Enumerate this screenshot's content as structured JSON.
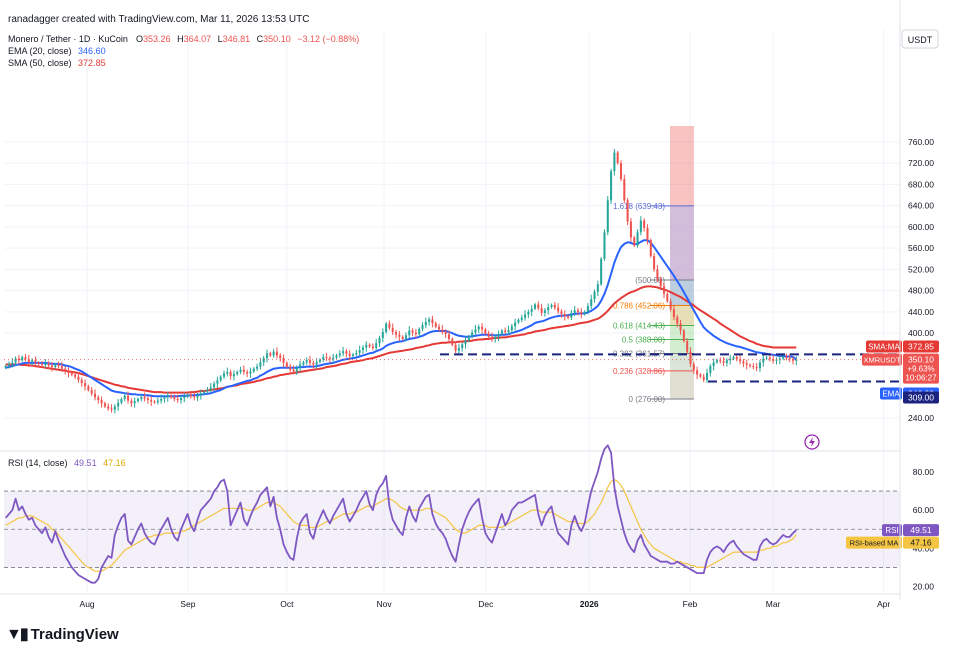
{
  "header": {
    "credit": "ranadagger created with TradingView.com, Mar 11, 2026 13:53 UTC",
    "symbol": "Monero / Tether · 1D · KuCoin",
    "ohlc": {
      "o_label": "O",
      "o": "353.26",
      "h_label": "H",
      "h": "364.07",
      "l_label": "L",
      "l": "346.81",
      "c_label": "C",
      "c": "350.10",
      "change": "−3.12 (−0.88%)"
    },
    "ema_legend": {
      "label": "EMA (20, close)",
      "value": "346.60"
    },
    "sma_legend": {
      "label": "SMA (50, close)",
      "value": "372.85"
    },
    "rsi_legend": {
      "label": "RSI (14, close)",
      "value": "49.51",
      "ma_value": "47.16"
    }
  },
  "axis": {
    "currency": "USDT",
    "price_ticks": [
      "760.00",
      "720.00",
      "680.00",
      "640.00",
      "600.00",
      "560.00",
      "520.00",
      "480.00",
      "440.00",
      "400.00",
      "240.00"
    ],
    "rsi_ticks": [
      "80.00",
      "60.00",
      "40.00",
      "20.00"
    ],
    "months": [
      "Aug",
      "Sep",
      "Oct",
      "Nov",
      "Dec",
      "2026",
      "Feb",
      "Mar",
      "Apr"
    ]
  },
  "tags": {
    "sma": {
      "label": "SMA:MA",
      "value": "372.85"
    },
    "level_360": "360.00",
    "symbol": {
      "label": "XMRUSDT",
      "value": "350.10",
      "change": "+9.63%",
      "countdown": "10:06:27"
    },
    "ema": {
      "label": "EMA",
      "value": "346.60"
    },
    "level_309": "309.00",
    "rsi": {
      "label": "RSI",
      "value": "49.51"
    },
    "rsi_ma": {
      "label": "RSI-based MA",
      "value": "47.16"
    }
  },
  "fib_labels": [
    "1.618 (639.43)",
    "(500.00)",
    "0.786 (452.06)",
    "0.618 (414.43)",
    "0.5 (388.00)",
    "0.382 (361.57)",
    "0.236 (328.86)",
    "0 (276.00)"
  ],
  "logo": "TradingView",
  "colors": {
    "up": "#26a69a",
    "down": "#ef5350",
    "ema": "#2962ff",
    "sma": "#e53935",
    "rsi": "#7e57c2",
    "rsi_ma": "#f5c542",
    "fib_green": "#4caf50",
    "fib_red": "#ef5350",
    "fib_blue": "#5b6bd6",
    "level": "#1a237e"
  },
  "chart_data": {
    "type": "candlestick",
    "title": "Monero / Tether · 1D · KuCoin",
    "price_range": [
      210,
      790
    ],
    "rsi_range": [
      15,
      96
    ],
    "closes": [
      338,
      341,
      345,
      352,
      349,
      355,
      351,
      346,
      349,
      344,
      342,
      340,
      343,
      339,
      336,
      341,
      338,
      333,
      329,
      325,
      322,
      318,
      312,
      306,
      300,
      293,
      286,
      279,
      274,
      268,
      262,
      258,
      256,
      262,
      269,
      276,
      282,
      273,
      268,
      272,
      276,
      280,
      277,
      274,
      271,
      270,
      273,
      276,
      279,
      282,
      279,
      276,
      274,
      278,
      281,
      284,
      281,
      279,
      283,
      287,
      290,
      293,
      298,
      305,
      311,
      318,
      324,
      327,
      319,
      323,
      327,
      331,
      327,
      324,
      328,
      333,
      337,
      345,
      353,
      362,
      358,
      365,
      358,
      353,
      344,
      337,
      331,
      328,
      335,
      341,
      345,
      349,
      344,
      341,
      346,
      350,
      355,
      353,
      351,
      354,
      358,
      362,
      366,
      361,
      357,
      360,
      363,
      368,
      373,
      378,
      375,
      372,
      381,
      391,
      402,
      418,
      410,
      402,
      397,
      393,
      389,
      396,
      405,
      401,
      398,
      408,
      415,
      421,
      426,
      419,
      412,
      407,
      403,
      398,
      389,
      378,
      367,
      372,
      379,
      386,
      394,
      401,
      407,
      412,
      407,
      399,
      393,
      389,
      393,
      398,
      405,
      402,
      406,
      413,
      420,
      425,
      429,
      435,
      440,
      446,
      454,
      447,
      438,
      443,
      449,
      453,
      448,
      441,
      436,
      432,
      429,
      438,
      443,
      440,
      436,
      440,
      451,
      464,
      478,
      492,
      540,
      590,
      650,
      705,
      740,
      720,
      690,
      650,
      610,
      580,
      565,
      590,
      612,
      598,
      575,
      545,
      520,
      502,
      488,
      474,
      460,
      445,
      430,
      418,
      405,
      385,
      365,
      342,
      330,
      322,
      318,
      312,
      325,
      338,
      345,
      349,
      347,
      344,
      349,
      352,
      355,
      351,
      347,
      343,
      340,
      338,
      336,
      334,
      345,
      352,
      354,
      351,
      348,
      350,
      352,
      356,
      353,
      351,
      348,
      350
    ],
    "ema20": [
      335,
      336,
      338,
      340,
      341,
      343,
      344,
      344,
      344,
      344,
      344,
      344,
      344,
      343,
      342,
      342,
      342,
      341,
      339,
      338,
      336,
      333,
      331,
      328,
      324,
      320,
      316,
      312,
      308,
      304,
      300,
      296,
      292,
      290,
      289,
      288,
      287,
      286,
      285,
      285,
      284,
      284,
      283,
      283,
      282,
      281,
      281,
      281,
      281,
      281,
      281,
      281,
      281,
      282,
      282,
      282,
      283,
      283,
      284,
      284,
      285,
      286,
      287,
      289,
      291,
      293,
      296,
      299,
      300,
      302,
      304,
      306,
      308,
      310,
      311,
      314,
      316,
      320,
      323,
      327,
      330,
      333,
      334,
      335,
      335,
      335,
      335,
      335,
      335,
      336,
      336,
      337,
      337,
      337,
      338,
      339,
      341,
      342,
      343,
      344,
      346,
      348,
      350,
      351,
      352,
      353,
      354,
      356,
      358,
      360,
      362,
      363,
      366,
      368,
      371,
      376,
      379,
      381,
      383,
      384,
      385,
      387,
      389,
      390,
      391,
      393,
      395,
      398,
      401,
      403,
      404,
      404,
      404,
      404,
      402,
      400,
      397,
      395,
      394,
      393,
      393,
      394,
      395,
      396,
      397,
      397,
      397,
      396,
      396,
      396,
      397,
      397,
      398,
      400,
      402,
      404,
      406,
      409,
      412,
      415,
      419,
      421,
      422,
      424,
      427,
      429,
      431,
      432,
      433,
      433,
      434,
      435,
      436,
      437,
      437,
      437,
      439,
      442,
      446,
      451,
      461,
      474,
      491,
      512,
      533,
      549,
      562,
      568,
      571,
      570,
      567,
      568,
      572,
      575,
      575,
      570,
      562,
      553,
      544,
      535,
      526,
      517,
      508,
      498,
      488,
      477,
      466,
      454,
      443,
      432,
      421,
      411,
      405,
      400,
      395,
      391,
      387,
      384,
      381,
      379,
      377,
      375,
      374,
      372,
      370,
      368,
      366,
      364,
      363,
      362,
      361,
      360,
      359,
      358,
      357,
      357,
      356,
      356,
      355,
      350
    ],
    "sma50": [
      341,
      341,
      341,
      341,
      341,
      340,
      340,
      339,
      339,
      338,
      337,
      336,
      335,
      334,
      333,
      332,
      331,
      330,
      329,
      328,
      327,
      326,
      325,
      323,
      321,
      319,
      317,
      315,
      313,
      311,
      309,
      307,
      305,
      303,
      302,
      300,
      299,
      297,
      296,
      295,
      294,
      293,
      292,
      291,
      290,
      289,
      289,
      289,
      288,
      288,
      288,
      288,
      288,
      288,
      288,
      288,
      289,
      289,
      290,
      291,
      291,
      292,
      293,
      294,
      295,
      296,
      297,
      299,
      300,
      301,
      302,
      304,
      305,
      306,
      307,
      308,
      310,
      311,
      313,
      315,
      316,
      318,
      319,
      321,
      322,
      323,
      324,
      325,
      326,
      327,
      328,
      329,
      330,
      331,
      332,
      333,
      334,
      336,
      337,
      338,
      339,
      341,
      342,
      343,
      345,
      346,
      347,
      348,
      349,
      351,
      352,
      353,
      355,
      357,
      359,
      361,
      363,
      364,
      365,
      366,
      367,
      368,
      369,
      370,
      372,
      373,
      374,
      376,
      377,
      379,
      380,
      381,
      382,
      382,
      383,
      383,
      383,
      384,
      384,
      385,
      385,
      386,
      387,
      388,
      388,
      389,
      389,
      390,
      391,
      391,
      392,
      392,
      393,
      394,
      395,
      396,
      397,
      398,
      400,
      401,
      403,
      404,
      405,
      406,
      408,
      409,
      410,
      411,
      412,
      413,
      414,
      415,
      416,
      418,
      419,
      420,
      421,
      423,
      425,
      427,
      431,
      436,
      442,
      449,
      456,
      461,
      466,
      470,
      474,
      477,
      479,
      482,
      485,
      487,
      488,
      488,
      487,
      486,
      484,
      482,
      480,
      477,
      474,
      471,
      468,
      464,
      460,
      456,
      452,
      447,
      443,
      439,
      435,
      431,
      427,
      423,
      418,
      414,
      410,
      406,
      402,
      398,
      394,
      391,
      388,
      385,
      383,
      380,
      378,
      376,
      375,
      374,
      373,
      373,
      373,
      373,
      373,
      373,
      373,
      373
    ],
    "rsi": [
      56,
      58,
      60,
      66,
      60,
      62,
      58,
      55,
      56,
      52,
      50,
      48,
      51,
      46,
      43,
      49,
      44,
      40,
      36,
      33,
      30,
      28,
      26,
      25,
      24,
      23,
      22,
      22,
      24,
      30,
      33,
      36,
      35,
      47,
      52,
      56,
      58,
      44,
      42,
      46,
      50,
      53,
      48,
      45,
      43,
      42,
      46,
      50,
      53,
      56,
      50,
      46,
      44,
      50,
      54,
      58,
      52,
      49,
      55,
      60,
      62,
      64,
      66,
      70,
      72,
      75,
      76,
      70,
      52,
      56,
      60,
      64,
      55,
      52,
      57,
      61,
      64,
      68,
      70,
      72,
      62,
      67,
      56,
      50,
      42,
      38,
      35,
      34,
      45,
      53,
      56,
      58,
      48,
      45,
      52,
      56,
      60,
      56,
      53,
      57,
      60,
      63,
      66,
      58,
      54,
      57,
      60,
      64,
      67,
      70,
      63,
      60,
      68,
      72,
      74,
      78,
      62,
      55,
      52,
      49,
      47,
      56,
      62,
      57,
      54,
      61,
      64,
      67,
      68,
      58,
      53,
      50,
      48,
      45,
      40,
      36,
      33,
      42,
      50,
      55,
      59,
      62,
      64,
      66,
      56,
      48,
      45,
      43,
      48,
      53,
      58,
      52,
      55,
      60,
      62,
      64,
      64,
      65,
      66,
      67,
      68,
      58,
      52,
      57,
      60,
      62,
      54,
      48,
      46,
      44,
      42,
      52,
      57,
      52,
      49,
      53,
      62,
      70,
      75,
      80,
      87,
      92,
      94,
      90,
      72,
      62,
      55,
      48,
      43,
      40,
      38,
      44,
      47,
      42,
      39,
      36,
      35,
      34,
      33,
      33,
      33,
      32,
      32,
      33,
      32,
      31,
      30,
      29,
      28,
      27,
      27,
      27,
      34,
      38,
      40,
      41,
      40,
      38,
      41,
      43,
      44,
      41,
      39,
      37,
      36,
      35,
      34,
      34,
      41,
      44,
      45,
      43,
      42,
      43,
      45,
      47,
      46,
      46,
      48,
      49.5
    ],
    "rsi_ma": [
      52,
      53,
      54,
      55,
      56,
      56,
      57,
      57,
      57,
      56,
      55,
      54,
      53,
      52,
      50,
      49,
      47,
      45,
      43,
      41,
      39,
      37,
      35,
      33,
      31,
      30,
      29,
      28,
      28,
      28,
      29,
      30,
      31,
      33,
      35,
      37,
      39,
      40,
      41,
      42,
      43,
      44,
      45,
      46,
      46,
      47,
      47,
      47,
      48,
      48,
      48,
      48,
      48,
      49,
      49,
      50,
      51,
      52,
      53,
      54,
      55,
      56,
      57,
      58,
      59,
      60,
      61,
      61,
      61,
      61,
      61,
      61,
      61,
      60,
      60,
      60,
      61,
      62,
      63,
      64,
      64,
      64,
      63,
      62,
      60,
      58,
      56,
      54,
      53,
      52,
      52,
      52,
      51,
      51,
      51,
      52,
      53,
      54,
      54,
      55,
      56,
      57,
      58,
      58,
      58,
      59,
      59,
      60,
      61,
      62,
      62,
      62,
      63,
      64,
      65,
      66,
      66,
      65,
      64,
      62,
      61,
      60,
      60,
      60,
      60,
      60,
      60,
      61,
      61,
      60,
      59,
      58,
      57,
      56,
      54,
      52,
      50,
      49,
      48,
      48,
      49,
      50,
      51,
      52,
      52,
      52,
      51,
      51,
      51,
      51,
      51,
      52,
      53,
      54,
      55,
      56,
      57,
      58,
      59,
      60,
      60,
      60,
      59,
      59,
      59,
      59,
      58,
      57,
      56,
      55,
      54,
      54,
      54,
      53,
      53,
      53,
      54,
      56,
      58,
      61,
      64,
      68,
      72,
      75,
      76,
      75,
      73,
      70,
      66,
      62,
      58,
      54,
      50,
      47,
      44,
      42,
      40,
      39,
      38,
      37,
      36,
      35,
      34,
      33,
      33,
      32,
      32,
      31,
      31,
      30,
      30,
      30,
      30,
      31,
      32,
      33,
      34,
      35,
      36,
      37,
      38,
      38,
      38,
      38,
      38,
      38,
      38,
      38,
      39,
      39,
      40,
      40,
      41,
      41,
      42,
      43,
      43,
      44,
      45,
      47.2
    ],
    "fib_levels": [
      {
        "ratio": "1.618",
        "price": 639.43
      },
      {
        "ratio": "",
        "price": 500
      },
      {
        "ratio": "0.786",
        "price": 452.06
      },
      {
        "ratio": "0.618",
        "price": 414.43
      },
      {
        "ratio": "0.5",
        "price": 388
      },
      {
        "ratio": "0.382",
        "price": 361.57
      },
      {
        "ratio": "0.236",
        "price": 328.86
      },
      {
        "ratio": "0",
        "price": 276
      }
    ],
    "horizontal_levels": [
      360,
      309
    ],
    "position_box": {
      "entry": 500,
      "stop": 790,
      "target": 276
    }
  }
}
